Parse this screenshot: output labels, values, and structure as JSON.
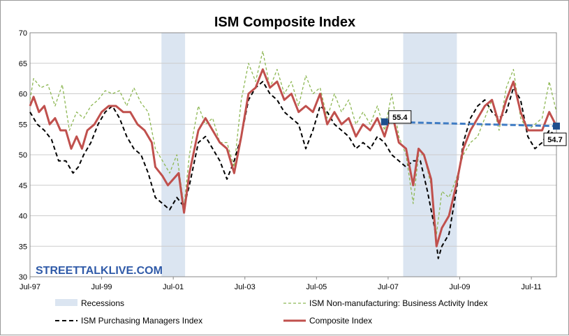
{
  "chart_data": {
    "type": "line",
    "title": "ISM Composite Index",
    "xlabel": "",
    "ylabel": "",
    "x_start": 1997.5,
    "x_end": 2012.2,
    "ylim": [
      30,
      70
    ],
    "yticks": [
      "30",
      "35",
      "40",
      "45",
      "50",
      "55",
      "60",
      "65",
      "70"
    ],
    "xticks": [
      {
        "label": "Jul-97",
        "x": 1997.5
      },
      {
        "label": "Jul-99",
        "x": 1999.5
      },
      {
        "label": "Jul-01",
        "x": 2001.5
      },
      {
        "label": "Jul-03",
        "x": 2003.5
      },
      {
        "label": "Jul-05",
        "x": 2005.5
      },
      {
        "label": "Jul-07",
        "x": 2007.5
      },
      {
        "label": "Jul-09",
        "x": 2009.5
      },
      {
        "label": "Jul-11",
        "x": 2011.5
      }
    ],
    "grid": true,
    "legend_position": "bottom",
    "recessions": [
      {
        "start": 2001.17,
        "end": 2001.83
      },
      {
        "start": 2007.92,
        "end": 2009.42
      }
    ],
    "series": [
      {
        "name": "ISM Non-manufacturing: Business Activity Index",
        "color": "#8db753",
        "style": "dashed",
        "points": [
          [
            1997.5,
            59
          ],
          [
            1997.6,
            62.5
          ],
          [
            1997.8,
            61
          ],
          [
            1998.0,
            61.5
          ],
          [
            1998.2,
            58
          ],
          [
            1998.4,
            61.5
          ],
          [
            1998.6,
            54
          ],
          [
            1998.8,
            57
          ],
          [
            1999.0,
            56
          ],
          [
            1999.2,
            58
          ],
          [
            1999.4,
            59
          ],
          [
            1999.6,
            60.5
          ],
          [
            1999.8,
            60
          ],
          [
            2000.0,
            60.5
          ],
          [
            2000.2,
            58
          ],
          [
            2000.4,
            61
          ],
          [
            2000.6,
            58.5
          ],
          [
            2000.8,
            57
          ],
          [
            2001.0,
            51
          ],
          [
            2001.2,
            49
          ],
          [
            2001.4,
            47
          ],
          [
            2001.6,
            50
          ],
          [
            2001.8,
            41.5
          ],
          [
            2001.95,
            50
          ],
          [
            2002.2,
            58
          ],
          [
            2002.4,
            55
          ],
          [
            2002.6,
            56
          ],
          [
            2002.8,
            52
          ],
          [
            2003.0,
            52
          ],
          [
            2003.2,
            48
          ],
          [
            2003.4,
            59
          ],
          [
            2003.6,
            65
          ],
          [
            2003.8,
            62
          ],
          [
            2004.0,
            67
          ],
          [
            2004.2,
            61
          ],
          [
            2004.4,
            64
          ],
          [
            2004.6,
            60
          ],
          [
            2004.8,
            62
          ],
          [
            2005.0,
            58
          ],
          [
            2005.2,
            63
          ],
          [
            2005.4,
            60
          ],
          [
            2005.6,
            61
          ],
          [
            2005.8,
            56
          ],
          [
            2006.0,
            60
          ],
          [
            2006.2,
            57
          ],
          [
            2006.4,
            59
          ],
          [
            2006.6,
            55
          ],
          [
            2006.8,
            57
          ],
          [
            2007.0,
            55
          ],
          [
            2007.2,
            58
          ],
          [
            2007.4,
            54
          ],
          [
            2007.6,
            60
          ],
          [
            2007.8,
            53
          ],
          [
            2008.0,
            50
          ],
          [
            2008.2,
            42
          ],
          [
            2008.35,
            50
          ],
          [
            2008.5,
            50
          ],
          [
            2008.7,
            45
          ],
          [
            2008.85,
            37
          ],
          [
            2009.0,
            44
          ],
          [
            2009.2,
            43
          ],
          [
            2009.4,
            46
          ],
          [
            2009.6,
            50
          ],
          [
            2009.8,
            52
          ],
          [
            2010.0,
            53
          ],
          [
            2010.2,
            56
          ],
          [
            2010.4,
            59
          ],
          [
            2010.6,
            54
          ],
          [
            2010.8,
            61
          ],
          [
            2011.0,
            64
          ],
          [
            2011.2,
            56
          ],
          [
            2011.4,
            54
          ],
          [
            2011.6,
            55
          ],
          [
            2011.8,
            56
          ],
          [
            2012.0,
            62
          ],
          [
            2012.2,
            57
          ]
        ]
      },
      {
        "name": "ISM Purchasing Managers Index",
        "color": "#000000",
        "style": "dashed",
        "points": [
          [
            1997.5,
            57
          ],
          [
            1997.7,
            55
          ],
          [
            1997.9,
            54
          ],
          [
            1998.1,
            52.5
          ],
          [
            1998.3,
            49
          ],
          [
            1998.5,
            49
          ],
          [
            1998.7,
            47
          ],
          [
            1998.85,
            48
          ],
          [
            1999.0,
            50
          ],
          [
            1999.2,
            52
          ],
          [
            1999.4,
            55
          ],
          [
            1999.6,
            57
          ],
          [
            1999.8,
            58
          ],
          [
            2000.0,
            56
          ],
          [
            2000.2,
            53
          ],
          [
            2000.4,
            51
          ],
          [
            2000.6,
            50
          ],
          [
            2000.8,
            47
          ],
          [
            2001.0,
            43
          ],
          [
            2001.2,
            42
          ],
          [
            2001.4,
            41
          ],
          [
            2001.6,
            43
          ],
          [
            2001.8,
            41.5
          ],
          [
            2001.95,
            45
          ],
          [
            2002.2,
            52
          ],
          [
            2002.4,
            53
          ],
          [
            2002.6,
            51
          ],
          [
            2002.8,
            49
          ],
          [
            2003.0,
            46
          ],
          [
            2003.2,
            49
          ],
          [
            2003.4,
            53
          ],
          [
            2003.6,
            59
          ],
          [
            2003.8,
            61
          ],
          [
            2004.0,
            62
          ],
          [
            2004.2,
            60
          ],
          [
            2004.4,
            59
          ],
          [
            2004.6,
            57
          ],
          [
            2004.8,
            56
          ],
          [
            2005.0,
            55
          ],
          [
            2005.2,
            51
          ],
          [
            2005.4,
            54
          ],
          [
            2005.6,
            58
          ],
          [
            2005.8,
            57
          ],
          [
            2006.0,
            55
          ],
          [
            2006.2,
            54
          ],
          [
            2006.4,
            53
          ],
          [
            2006.6,
            51
          ],
          [
            2006.8,
            52
          ],
          [
            2007.0,
            51
          ],
          [
            2007.2,
            53
          ],
          [
            2007.4,
            52
          ],
          [
            2007.6,
            50
          ],
          [
            2007.8,
            49
          ],
          [
            2008.0,
            48
          ],
          [
            2008.2,
            49
          ],
          [
            2008.4,
            49
          ],
          [
            2008.6,
            44
          ],
          [
            2008.8,
            38
          ],
          [
            2008.9,
            33
          ],
          [
            2009.0,
            35
          ],
          [
            2009.2,
            37
          ],
          [
            2009.4,
            44
          ],
          [
            2009.6,
            52
          ],
          [
            2009.8,
            56
          ],
          [
            2010.0,
            58
          ],
          [
            2010.2,
            59
          ],
          [
            2010.4,
            57
          ],
          [
            2010.6,
            56
          ],
          [
            2010.8,
            57
          ],
          [
            2011.0,
            61
          ],
          [
            2011.2,
            59
          ],
          [
            2011.4,
            53
          ],
          [
            2011.6,
            51
          ],
          [
            2011.8,
            52
          ],
          [
            2012.0,
            54
          ],
          [
            2012.2,
            53
          ]
        ]
      },
      {
        "name": "Composite Index",
        "color": "#c0504d",
        "style": "solid",
        "points": [
          [
            1997.5,
            58
          ],
          [
            1997.6,
            59.5
          ],
          [
            1997.75,
            57
          ],
          [
            1997.9,
            58
          ],
          [
            1998.05,
            55
          ],
          [
            1998.2,
            56
          ],
          [
            1998.35,
            54
          ],
          [
            1998.5,
            54
          ],
          [
            1998.65,
            51
          ],
          [
            1998.8,
            53
          ],
          [
            1998.95,
            51
          ],
          [
            1999.1,
            54
          ],
          [
            1999.3,
            55
          ],
          [
            1999.5,
            57
          ],
          [
            1999.7,
            58
          ],
          [
            1999.9,
            58
          ],
          [
            2000.1,
            57
          ],
          [
            2000.3,
            57
          ],
          [
            2000.5,
            55
          ],
          [
            2000.7,
            54
          ],
          [
            2000.9,
            52
          ],
          [
            2001.0,
            48
          ],
          [
            2001.2,
            46.5
          ],
          [
            2001.35,
            45
          ],
          [
            2001.5,
            46
          ],
          [
            2001.65,
            47
          ],
          [
            2001.8,
            40.5
          ],
          [
            2001.95,
            47
          ],
          [
            2002.2,
            54
          ],
          [
            2002.4,
            56
          ],
          [
            2002.6,
            54
          ],
          [
            2002.8,
            52
          ],
          [
            2003.0,
            51
          ],
          [
            2003.2,
            47
          ],
          [
            2003.4,
            53
          ],
          [
            2003.6,
            60
          ],
          [
            2003.8,
            61
          ],
          [
            2004.0,
            64
          ],
          [
            2004.2,
            61
          ],
          [
            2004.4,
            62
          ],
          [
            2004.6,
            59
          ],
          [
            2004.8,
            60
          ],
          [
            2005.0,
            57
          ],
          [
            2005.2,
            58
          ],
          [
            2005.4,
            57
          ],
          [
            2005.6,
            60
          ],
          [
            2005.8,
            55
          ],
          [
            2006.0,
            57
          ],
          [
            2006.2,
            55
          ],
          [
            2006.4,
            56
          ],
          [
            2006.6,
            53
          ],
          [
            2006.8,
            55
          ],
          [
            2007.0,
            54
          ],
          [
            2007.2,
            56
          ],
          [
            2007.4,
            53
          ],
          [
            2007.6,
            57
          ],
          [
            2007.8,
            52
          ],
          [
            2008.0,
            51
          ],
          [
            2008.2,
            45
          ],
          [
            2008.35,
            51
          ],
          [
            2008.5,
            50
          ],
          [
            2008.7,
            46
          ],
          [
            2008.85,
            35
          ],
          [
            2009.0,
            38
          ],
          [
            2009.2,
            40
          ],
          [
            2009.4,
            45
          ],
          [
            2009.6,
            51
          ],
          [
            2009.8,
            54
          ],
          [
            2010.0,
            56
          ],
          [
            2010.2,
            58
          ],
          [
            2010.4,
            59
          ],
          [
            2010.6,
            55
          ],
          [
            2010.8,
            59
          ],
          [
            2011.0,
            62
          ],
          [
            2011.2,
            57
          ],
          [
            2011.4,
            54
          ],
          [
            2011.6,
            54
          ],
          [
            2011.8,
            54
          ],
          [
            2012.0,
            57
          ],
          [
            2012.2,
            54.7
          ]
        ]
      }
    ],
    "trend_line": {
      "color": "#3f7cc4",
      "from": {
        "x": 2007.4,
        "y": 55.4,
        "label": "55.4"
      },
      "to": {
        "x": 2012.2,
        "y": 54.7,
        "label": "54.7"
      }
    },
    "legend": {
      "recessions_label": "Recessions",
      "items": [
        "Recessions",
        "ISM Non-manufacturing: Business Activity Index",
        "ISM Purchasing Managers Index",
        "Composite Index"
      ]
    }
  },
  "watermark": "STREETTALKLIVE.COM",
  "colors": {
    "recession_fill": "#dbe5f1",
    "grid": "#cccccc",
    "marker": "#1f4e8c"
  }
}
